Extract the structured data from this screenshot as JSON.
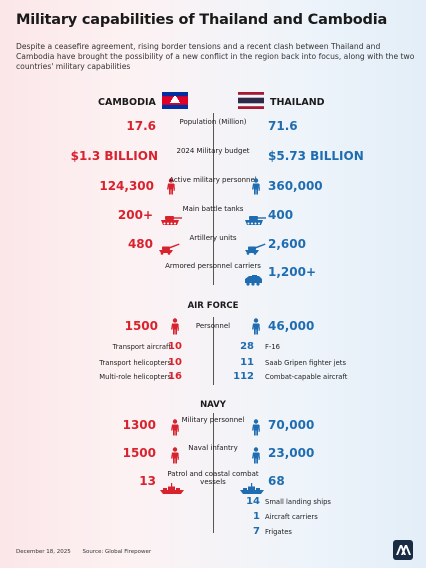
{
  "title": "Military capabilities of Thailand and Cambodia",
  "subtitle": "Despite a ceasefire agreement, rising border tensions and a recent clash between Thailand and Cambodia have brought the possibility of a new conflict in the region back into focus, along with the two countries' military capabilities",
  "left_country": "CAMBODIA",
  "right_country": "THAILAND",
  "colors": {
    "cambodia": "#d8232f",
    "thailand": "#1f6db0"
  },
  "rows": [
    {
      "label": "Population (Million)",
      "left": "17.6",
      "right": "71.6"
    },
    {
      "label": "2024 Military budget",
      "left": "$1.3 BILLION",
      "right": "$5.73 BILLION"
    },
    {
      "label": "Active military personnel",
      "left": "124,300",
      "right": "360,000"
    },
    {
      "label": "Main battle tanks",
      "left": "200+",
      "right": "400"
    },
    {
      "label": "Artillery units",
      "left": "480",
      "right": "2,600"
    },
    {
      "label": "Armored personnel carriers",
      "left": "",
      "right": "1,200+"
    }
  ],
  "air_force": {
    "heading": "AIR FORCE",
    "personnel_label": "Personnel",
    "personnel_left": "1500",
    "personnel_right": "46,000",
    "left_items": [
      {
        "label": "Transport aircraft",
        "value": "10"
      },
      {
        "label": "Transport helicopters",
        "value": "10"
      },
      {
        "label": "Multi-role helicopters",
        "value": "16"
      }
    ],
    "right_items": [
      {
        "label": "F-16",
        "value": "28"
      },
      {
        "label": "Saab Gripen fighter jets",
        "value": "11"
      },
      {
        "label": "Combat-capable aircraft",
        "value": "112"
      }
    ]
  },
  "navy": {
    "heading": "NAVY",
    "rows": [
      {
        "label": "Military personnel",
        "left": "1300",
        "right": "70,000"
      },
      {
        "label": "Naval infantry",
        "left": "1500",
        "right": "23,000"
      },
      {
        "label": "Patrol and coastal combat vessels",
        "left": "13",
        "right": "68"
      }
    ],
    "right_items": [
      {
        "label": "Small landing ships",
        "value": "14"
      },
      {
        "label": "Aircraft carriers",
        "value": "1"
      },
      {
        "label": "Frigates",
        "value": "7"
      }
    ]
  },
  "footer": {
    "date": "December 18, 2025",
    "source": "Source: Global Firepower"
  },
  "icons": [
    "soldier-icon",
    "tank-icon",
    "artillery-icon",
    "apc-icon",
    "warship-icon",
    "aa-logo-icon"
  ]
}
